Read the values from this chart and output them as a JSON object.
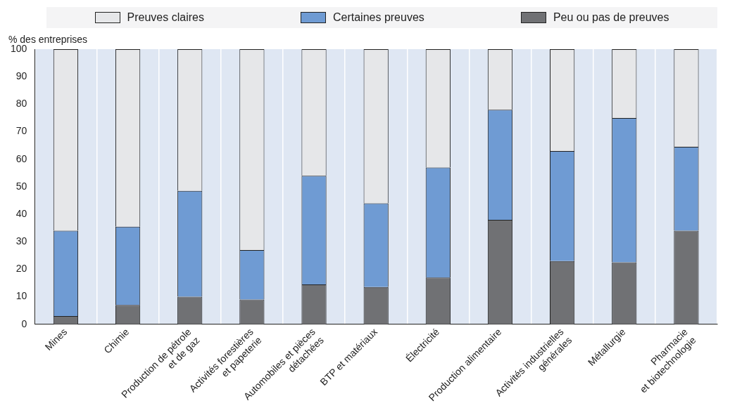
{
  "chart_data": {
    "type": "bar",
    "stacked": true,
    "ylabel": "% des entreprises",
    "categories": [
      "Mines",
      "Chimie",
      "Production de pétrole\net de gaz",
      "Activités forestières\net papeterie",
      "Automobiles et pièces\ndétachées",
      "BTP et matériaux",
      "Électricité",
      "Production alimentaire",
      "Activités industrielles\ngénérales",
      "Métallurgie",
      "Pharmacie\net biotechnologie"
    ],
    "series": [
      {
        "name": "Peu ou pas de preuves",
        "color": "#707174",
        "values": [
          3,
          7,
          10,
          9,
          14.5,
          13.5,
          17,
          38,
          23,
          22.5,
          34
        ]
      },
      {
        "name": "Certaines preuves",
        "color": "#6f9bd3",
        "values": [
          31,
          28.5,
          38.5,
          18,
          39.5,
          30.5,
          40,
          40,
          40,
          52.5,
          30.5
        ]
      },
      {
        "name": "Preuves claires",
        "color": "#e6e7e9",
        "values": [
          66,
          64.5,
          51.5,
          73,
          46,
          56,
          43,
          22,
          37,
          25,
          35.5
        ]
      }
    ],
    "ylim": [
      0,
      100
    ],
    "yticks": [
      0,
      10,
      20,
      30,
      40,
      50,
      60,
      70,
      80,
      90,
      100
    ],
    "grid": "x",
    "legend": "top"
  }
}
